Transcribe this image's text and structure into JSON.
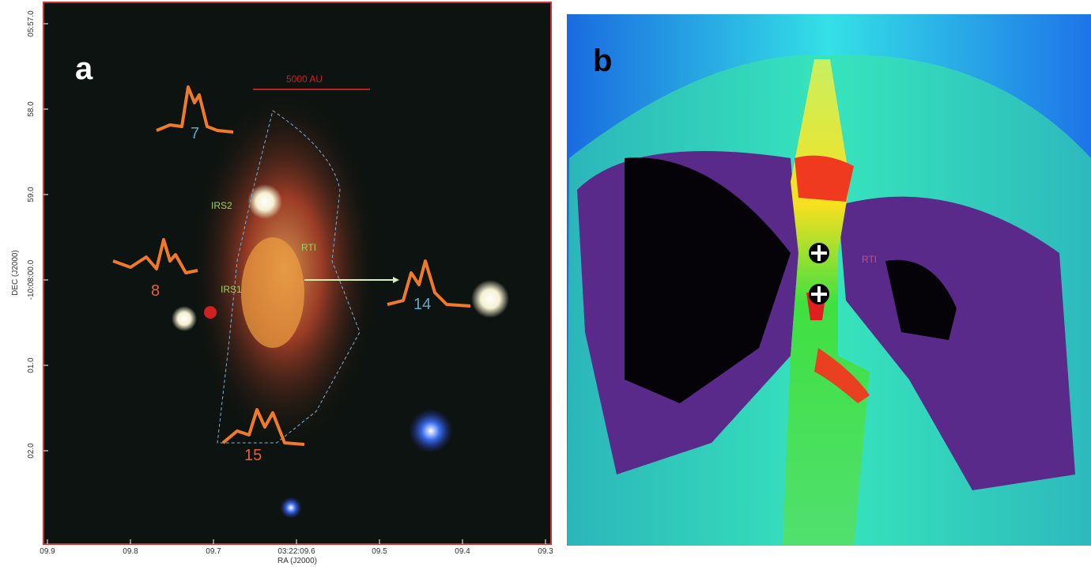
{
  "panels": [
    {
      "label": "a",
      "scale_bar": "5000 AU",
      "sources": [
        "IRS2",
        "RTI",
        "IRS1"
      ],
      "spectra": [
        "7",
        "8",
        "14",
        "15"
      ],
      "x_axis": {
        "title": "RA (J2000)",
        "ticks": [
          "09.9",
          "09.8",
          "09.7",
          "03:22:09.6",
          "09.5",
          "09.4",
          "09.3"
        ]
      },
      "y_axis": {
        "title": "DEC (J2000)",
        "ticks": [
          "05:57.0",
          "58.0",
          "59.0",
          "-10:08:00.0",
          "01.0",
          "02.0"
        ]
      }
    },
    {
      "label": "b",
      "annotation": "RTI"
    }
  ]
}
